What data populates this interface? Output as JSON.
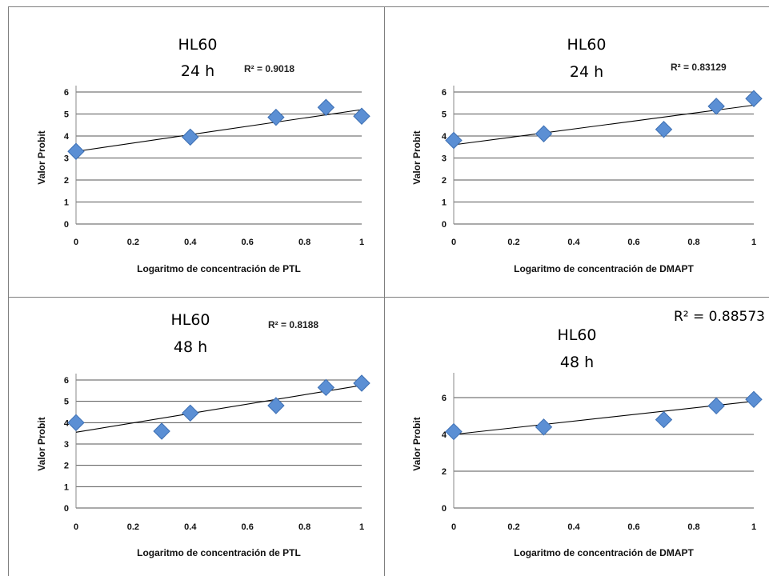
{
  "chart_data": [
    {
      "type": "scatter",
      "title_lines": [
        "HL60",
        "24 h"
      ],
      "r2_label": "R² = 0.9018",
      "xlabel": "Logaritmo de concentración de PTL",
      "ylabel": "Valor Probit",
      "xlim": [
        0,
        1
      ],
      "ylim": [
        0,
        6
      ],
      "xticks": [
        "0",
        "0.2",
        "0.4",
        "0.6",
        "0.8",
        "1"
      ],
      "yticks": [
        "0",
        "1",
        "2",
        "3",
        "4",
        "5",
        "6"
      ],
      "grid": true,
      "points": [
        {
          "x": 0,
          "y": 3.3
        },
        {
          "x": 0.4,
          "y": 3.95
        },
        {
          "x": 0.7,
          "y": 4.85
        },
        {
          "x": 0.875,
          "y": 5.3
        },
        {
          "x": 1,
          "y": 4.9
        }
      ],
      "trendline": {
        "x0": 0,
        "y0": 3.3,
        "x1": 1,
        "y1": 5.2
      }
    },
    {
      "type": "scatter",
      "title_lines": [
        "HL60",
        "24 h"
      ],
      "r2_label": "R² = 0.83129",
      "xlabel": "Logaritmo de concentración de DMAPT",
      "ylabel": "Valor Probit",
      "xlim": [
        0,
        1
      ],
      "ylim": [
        0,
        6
      ],
      "xticks": [
        "0",
        "0.2",
        "0.4",
        "0.6",
        "0.8",
        "1"
      ],
      "yticks": [
        "0",
        "1",
        "2",
        "3",
        "4",
        "5",
        "6"
      ],
      "grid": true,
      "points": [
        {
          "x": 0,
          "y": 3.8
        },
        {
          "x": 0.3,
          "y": 4.1
        },
        {
          "x": 0.7,
          "y": 4.3
        },
        {
          "x": 0.875,
          "y": 5.35
        },
        {
          "x": 1,
          "y": 5.7
        }
      ],
      "trendline": {
        "x0": 0,
        "y0": 3.6,
        "x1": 1,
        "y1": 5.4
      }
    },
    {
      "type": "scatter",
      "title_lines": [
        "HL60",
        "48 h"
      ],
      "r2_label": "R² = 0.8188",
      "xlabel": "Logaritmo de concentración de PTL",
      "ylabel": "Valor Probit",
      "xlim": [
        0,
        1
      ],
      "ylim": [
        0,
        6
      ],
      "xticks": [
        "0",
        "0.2",
        "0.4",
        "0.6",
        "0.8",
        "1"
      ],
      "yticks": [
        "0",
        "1",
        "2",
        "3",
        "4",
        "5",
        "6"
      ],
      "grid": true,
      "points": [
        {
          "x": 0,
          "y": 4.0
        },
        {
          "x": 0.3,
          "y": 3.6
        },
        {
          "x": 0.4,
          "y": 4.45
        },
        {
          "x": 0.7,
          "y": 4.8
        },
        {
          "x": 0.875,
          "y": 5.65
        },
        {
          "x": 1,
          "y": 5.85
        }
      ],
      "trendline": {
        "x0": 0,
        "y0": 3.55,
        "x1": 1,
        "y1": 5.75
      }
    },
    {
      "type": "scatter",
      "title_lines": [
        "HL60",
        "48 h"
      ],
      "r2_label": "R² = 0.88573",
      "xlabel": "Logaritmo de concentración de DMAPT",
      "ylabel": "Valor Probit",
      "xlim": [
        0,
        1
      ],
      "ylim": [
        0,
        7
      ],
      "xticks": [
        "0",
        "0.2",
        "0.4",
        "0.6",
        "0.8",
        "1"
      ],
      "yticks": [
        "0",
        "2",
        "4",
        "6"
      ],
      "grid": true,
      "points": [
        {
          "x": 0,
          "y": 4.15
        },
        {
          "x": 0.3,
          "y": 4.4
        },
        {
          "x": 0.7,
          "y": 4.8
        },
        {
          "x": 0.875,
          "y": 5.55
        },
        {
          "x": 1,
          "y": 5.9
        }
      ],
      "trendline": {
        "x0": 0,
        "y0": 4.0,
        "x1": 1,
        "y1": 5.8
      }
    }
  ]
}
